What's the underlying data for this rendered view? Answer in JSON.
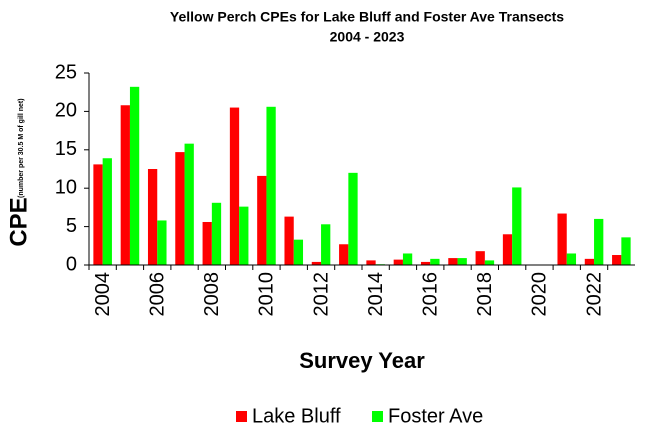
{
  "chart_data": {
    "type": "bar",
    "title": "Yellow Perch CPEs for Lake Bluff and Foster Ave Transects",
    "subtitle": "2004 - 2023",
    "ylabel": "CPE",
    "ylabel_note": "(number per 30.5 M of gill net)",
    "xlabel": "Survey Year",
    "categories": [
      "2004",
      null,
      "2006",
      null,
      "2008",
      null,
      "2010",
      null,
      "2012",
      null,
      "2014",
      null,
      "2016",
      null,
      "2018",
      null,
      "2020",
      null,
      "2022",
      null
    ],
    "series": [
      {
        "name": "Lake Bluff",
        "color": "#ff0000",
        "values": [
          13.1,
          20.8,
          12.5,
          14.7,
          5.6,
          20.5,
          11.6,
          6.3,
          0.4,
          2.7,
          0.6,
          0.7,
          0.4,
          0.9,
          1.8,
          4.0,
          0,
          6.7,
          0.8,
          1.3
        ]
      },
      {
        "name": "Foster Ave",
        "color": "#00ff00",
        "values": [
          13.9,
          23.2,
          5.8,
          15.8,
          8.1,
          7.6,
          20.6,
          3.3,
          5.3,
          12.0,
          0.1,
          1.5,
          0.8,
          0.9,
          0.6,
          10.1,
          0,
          1.5,
          6.0,
          3.6
        ]
      }
    ],
    "ylim": [
      0,
      25
    ],
    "yticks": [
      0,
      5,
      10,
      15,
      20,
      25
    ],
    "grid": false,
    "legend": "bottom"
  }
}
